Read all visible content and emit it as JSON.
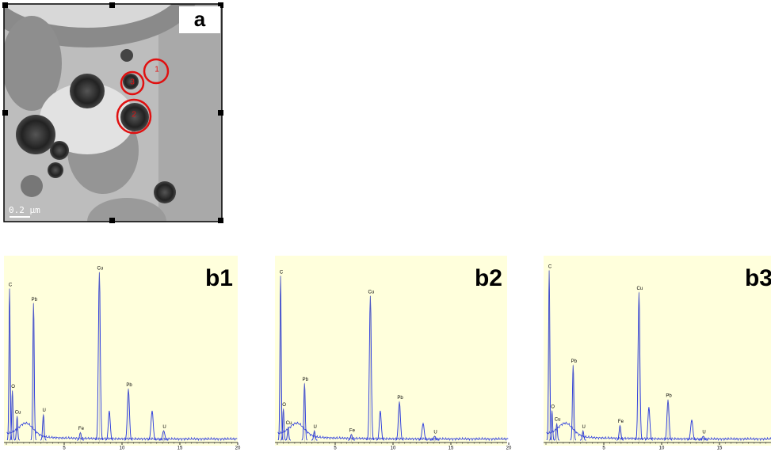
{
  "panel_a": {
    "label": "a",
    "scale_bar": "0.2 μm",
    "regions": [
      "1",
      "2",
      "3"
    ]
  },
  "spectra": [
    {
      "label": "b1",
      "xlim": [
        0,
        20
      ],
      "xticks": [
        5,
        10,
        15,
        20
      ],
      "peaks": [
        {
          "label": "C",
          "x": 0.28,
          "height": 84
        },
        {
          "label": "O",
          "x": 0.52,
          "height": 28
        },
        {
          "label": "Cu",
          "x": 0.93,
          "height": 14
        },
        {
          "label": "Pb",
          "x": 2.35,
          "height": 76
        },
        {
          "label": "U",
          "x": 3.2,
          "height": 15
        },
        {
          "label": "Fe",
          "x": 6.4,
          "height": 5
        },
        {
          "label": "Cu",
          "x": 8.04,
          "height": 93
        },
        {
          "label": null,
          "x": 8.9,
          "height": 17
        },
        {
          "label": "Pb",
          "x": 10.55,
          "height": 29
        },
        {
          "label": null,
          "x": 12.6,
          "height": 17
        },
        {
          "label": "U",
          "x": 13.6,
          "height": 6
        }
      ]
    },
    {
      "label": "b2",
      "xlim": [
        0,
        20
      ],
      "xticks": [
        5,
        10,
        15,
        20
      ],
      "peaks": [
        {
          "label": "C",
          "x": 0.28,
          "height": 91
        },
        {
          "label": "O",
          "x": 0.52,
          "height": 18
        },
        {
          "label": "Cu",
          "x": 0.93,
          "height": 8
        },
        {
          "label": "Pb",
          "x": 2.35,
          "height": 32
        },
        {
          "label": "U",
          "x": 3.2,
          "height": 6
        },
        {
          "label": "Fe",
          "x": 6.4,
          "height": 4
        },
        {
          "label": "Cu",
          "x": 8.04,
          "height": 80
        },
        {
          "label": null,
          "x": 8.9,
          "height": 17
        },
        {
          "label": "Pb",
          "x": 10.55,
          "height": 22
        },
        {
          "label": null,
          "x": 12.6,
          "height": 10
        },
        {
          "label": "U",
          "x": 13.6,
          "height": 3
        }
      ]
    },
    {
      "label": "b3",
      "xlim": [
        0,
        20
      ],
      "xticks": [
        5,
        10,
        15
      ],
      "peaks": [
        {
          "label": "C",
          "x": 0.28,
          "height": 94
        },
        {
          "label": "O",
          "x": 0.52,
          "height": 17
        },
        {
          "label": "Cu",
          "x": 0.93,
          "height": 10
        },
        {
          "label": "Pb",
          "x": 2.35,
          "height": 42
        },
        {
          "label": "U",
          "x": 3.2,
          "height": 6
        },
        {
          "label": "Fe",
          "x": 6.4,
          "height": 9
        },
        {
          "label": "Cu",
          "x": 8.04,
          "height": 82
        },
        {
          "label": null,
          "x": 8.9,
          "height": 19
        },
        {
          "label": "Pb",
          "x": 10.55,
          "height": 23
        },
        {
          "label": null,
          "x": 12.6,
          "height": 12
        },
        {
          "label": "U",
          "x": 13.6,
          "height": 3
        }
      ]
    }
  ]
}
